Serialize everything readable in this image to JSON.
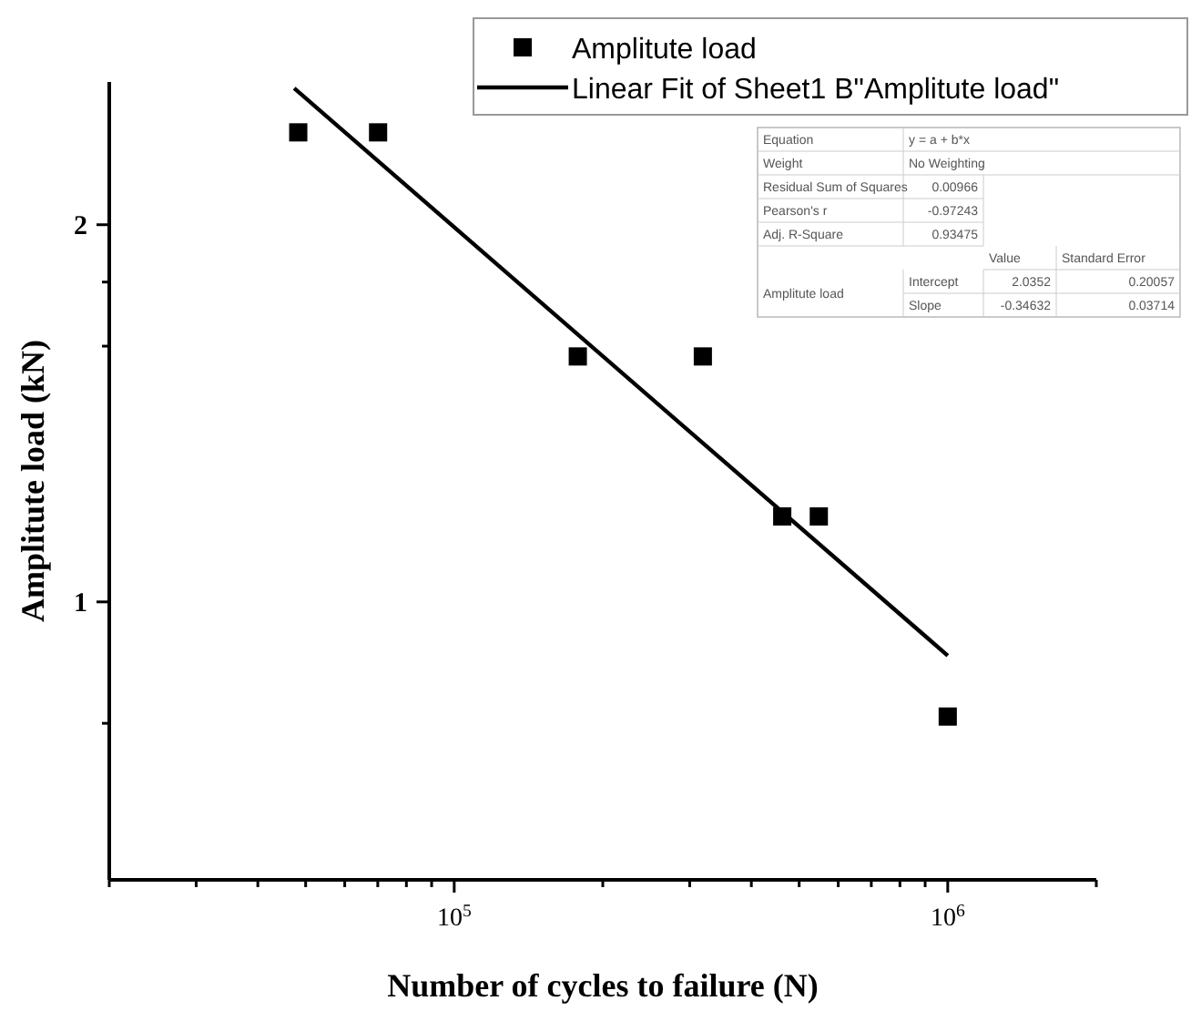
{
  "chart_data": {
    "type": "scatter",
    "xlabel": "Number of cycles to failure (N)",
    "ylabel": "Amplitute load (kN)",
    "log": "xy",
    "xlim": [
      20000,
      2000000
    ],
    "ylim": [
      0.6,
      2.6
    ],
    "xticks": [
      {
        "value": 20000,
        "label": null
      },
      {
        "value": 30000,
        "label": null
      },
      {
        "value": 40000,
        "label": null
      },
      {
        "value": 50000,
        "label": null
      },
      {
        "value": 60000,
        "label": null
      },
      {
        "value": 70000,
        "label": null
      },
      {
        "value": 80000,
        "label": null
      },
      {
        "value": 90000,
        "label": null
      },
      {
        "value": 100000,
        "label": "10$^{5}$"
      },
      {
        "value": 200000,
        "label": null
      },
      {
        "value": 300000,
        "label": null
      },
      {
        "value": 400000,
        "label": null
      },
      {
        "value": 500000,
        "label": null
      },
      {
        "value": 600000,
        "label": null
      },
      {
        "value": 700000,
        "label": null
      },
      {
        "value": 800000,
        "label": null
      },
      {
        "value": 900000,
        "label": null
      },
      {
        "value": 1000000,
        "label": "10$^{6}$"
      },
      {
        "value": 2000000,
        "label": null
      }
    ],
    "yticks": [
      {
        "value": 0.8,
        "label": null
      },
      1,
      {
        "value": 1.6,
        "label": null
      },
      {
        "value": 1.8,
        "label": null
      },
      2
    ],
    "legend": "top right",
    "marker": "square",
    "grid": false,
    "series": [
      {
        "name": "Amplitute load",
        "color": "#000000",
        "x": [
          48300,
          70100,
          178000,
          319000,
          462000,
          548000,
          1000000
        ],
        "values": [
          2.37,
          2.37,
          1.57,
          1.57,
          1.17,
          1.17,
          0.81
        ]
      },
      {
        "name": "Linear Fit of Sheet1 B\"Amplitute load\"",
        "type": "line",
        "marker": "none",
        "color": "#000000",
        "x": [
          47400,
          1000000
        ],
        "values": [
          2.57,
          0.906
        ]
      }
    ],
    "annotations": [
      "Equation",
      "y = a + b*x",
      "Weight",
      "No Weighting",
      "Residual Sum of Squares",
      "0.00966",
      "Pearson's r",
      "-0.97243",
      "Adj. R-Square",
      "0.93475",
      "Value",
      "Standard Error",
      "Amplitute load",
      "Intercept",
      "2.0352",
      "0.20057",
      "Slope",
      "-0.34632",
      "0.03714"
    ]
  }
}
